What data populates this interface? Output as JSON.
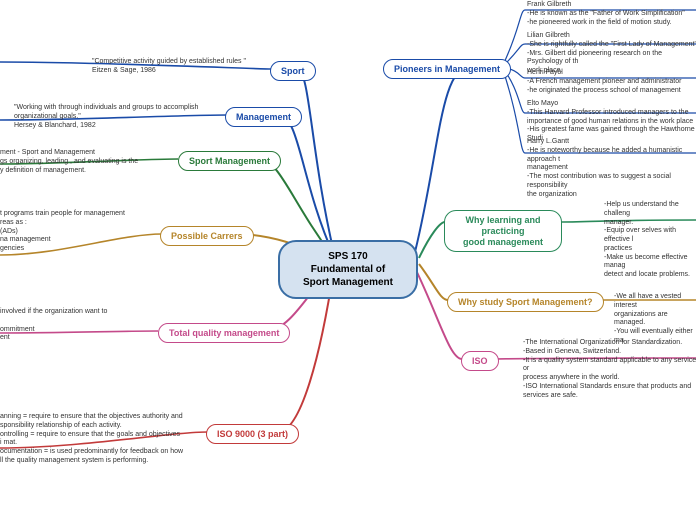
{
  "center": {
    "line1": "SPS 170",
    "line2": "Fundamental of",
    "line3": "Sport Management"
  },
  "colors": {
    "center_border": "#3a6ea5",
    "center_fill": "#d5e2f0",
    "sport": "#1a4ba8",
    "management": "#1a4ba8",
    "sportMgmt": "#2a7a3a",
    "careers": "#b5852a",
    "tqm": "#c44a8a",
    "iso9000": "#c23a3a",
    "pioneers": "#1a4ba8",
    "whyLearn": "#2a8a5a",
    "whyStudy": "#b5852a",
    "iso": "#c44a8a"
  },
  "left": {
    "sport": {
      "label": "Sport",
      "note": "\"Competitive activity guided by established rules \"\nEitzen & Sage, 1986"
    },
    "management": {
      "label": "Management",
      "note": "\"Working with through individuals and groups to accomplish\norganizational goals.\"\n                              Hersey & Blanchard, 1982"
    },
    "sportMgmt": {
      "label": "Sport Management",
      "note": "ment - Sport and Management\ngs organizing, leading , and evaluating  is the\ny definition of management."
    },
    "careers": {
      "label": "Possible Carrers",
      "note": "t programs train people for management\nreas as :\n(ADs)\nna management\ngencies"
    },
    "tqm": {
      "label": "Total quality management",
      "note": "involved if the organization want to\n\nommitment\nent"
    },
    "iso9000": {
      "label": "ISO 9000 (3 part)",
      "note": "anning = require to ensure that the objectives authority and\nsponsibility relationship of each activity.\nontrolling = require to ensure that the goals and objectives\ni mat.\nocumentation = is used predominantly for feedback on how\nll the quality management system is performing."
    }
  },
  "right": {
    "pioneers": {
      "label": "Pioneers in Management",
      "items": [
        "Frank Gilbreth\n-He is known as the \"Father of Work Simplification\"\n-he pioneered work in the field of motion study.",
        "Lilian Gilbreth\n-She is rightfully called the \"First Lady of Management\"\n-Mrs. Gilbert did pioneering research on the Psychology of th\nwork place.",
        "Henri Fayol\n-A French management pioneer and administrator\n-he originated the process school of management",
        "Elto Mayo\n-This Harvard Professor introduced managers to the\nimportance of good human relations in the work place\n-His greatest fame was gained through the Hawthorne Studi",
        "Harry L.Gantt\n-He is noteworthy because he added a humanistic approach t\nmanagement\n-The most contribution was to suggest a social responsibility\nthe organization"
      ]
    },
    "whyLearn": {
      "label": "Why learning and practicing\ngood management",
      "note": "-Help us understand the challeng\nmanager.\n-Equip over selves with effective l\npractices\n-Make us become effective manag\ndetect and locate problems."
    },
    "whyStudy": {
      "label": "Why study Sport Management?",
      "note": "-We all have a vested interest\norganizations are managed.\n-You will eventually either ma"
    },
    "iso": {
      "label": "ISO",
      "note": "-The International  Organization for Standardization.\n-Based in Geneva, Switzerland.\n-It is a quality system standard applicable to any service or\nprocess anywhere in the world.\n-ISO International Standards ensure that products and\nservices are safe."
    }
  }
}
